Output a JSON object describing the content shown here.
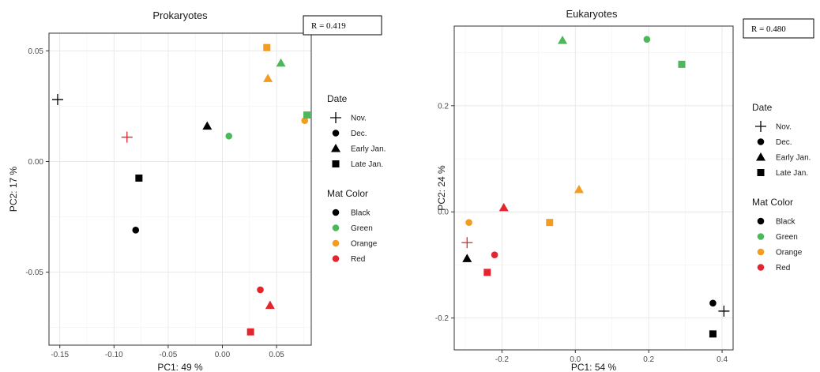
{
  "chart_data": [
    {
      "type": "scatter",
      "title": "Prokaryotes",
      "xlabel": "PC1:  49 %",
      "ylabel": "PC2:  17 %",
      "annotation": "R = 0.419",
      "xlim": [
        -0.16,
        0.082
      ],
      "ylim": [
        -0.083,
        0.058
      ],
      "xticks": [
        -0.15,
        -0.1,
        -0.05,
        0.0,
        0.05
      ],
      "xtick_labels": [
        "-0.15",
        "-0.10",
        "-0.05",
        "0.00",
        "0.05"
      ],
      "yticks": [
        -0.05,
        0.0,
        0.05
      ],
      "ytick_labels": [
        "-0.05",
        "0.00",
        "0.05"
      ],
      "grid": true,
      "points": [
        {
          "x": -0.152,
          "y": 0.028,
          "date": "Nov.",
          "color": "Black"
        },
        {
          "x": -0.088,
          "y": 0.011,
          "date": "Nov.",
          "color": "Red"
        },
        {
          "x": -0.08,
          "y": -0.031,
          "date": "Dec.",
          "color": "Black"
        },
        {
          "x": 0.006,
          "y": 0.0115,
          "date": "Dec.",
          "color": "Green"
        },
        {
          "x": 0.076,
          "y": 0.0185,
          "date": "Dec.",
          "color": "Orange"
        },
        {
          "x": 0.035,
          "y": -0.058,
          "date": "Dec.",
          "color": "Red"
        },
        {
          "x": -0.014,
          "y": 0.016,
          "date": "Early Jan.",
          "color": "Black"
        },
        {
          "x": 0.054,
          "y": 0.0445,
          "date": "Early Jan.",
          "color": "Green"
        },
        {
          "x": 0.042,
          "y": 0.0375,
          "date": "Early Jan.",
          "color": "Orange"
        },
        {
          "x": 0.044,
          "y": -0.065,
          "date": "Early Jan.",
          "color": "Red"
        },
        {
          "x": -0.077,
          "y": -0.0075,
          "date": "Late Jan.",
          "color": "Black"
        },
        {
          "x": 0.078,
          "y": 0.021,
          "date": "Late Jan.",
          "color": "Green"
        },
        {
          "x": 0.041,
          "y": 0.0515,
          "date": "Late Jan.",
          "color": "Orange"
        },
        {
          "x": 0.026,
          "y": -0.077,
          "date": "Late Jan.",
          "color": "Red"
        }
      ]
    },
    {
      "type": "scatter",
      "title": "Eukaryotes",
      "xlabel": "PC1:  54 %",
      "ylabel": "PC2:  24 %",
      "annotation": "R = 0.480",
      "xlim": [
        -0.33,
        0.43
      ],
      "ylim": [
        -0.26,
        0.35
      ],
      "xticks": [
        -0.2,
        0.0,
        0.2,
        0.4
      ],
      "xtick_labels": [
        "-0.2",
        "0.0",
        "0.2",
        "0.4"
      ],
      "yticks": [
        -0.2,
        0.0,
        0.2
      ],
      "ytick_labels": [
        "-0.2",
        "0.0",
        "0.2"
      ],
      "grid": true,
      "points": [
        {
          "x": -0.295,
          "y": -0.058,
          "date": "Nov.",
          "color": "Red"
        },
        {
          "x": 0.405,
          "y": -0.187,
          "date": "Nov.",
          "color": "Black"
        },
        {
          "x": -0.29,
          "y": -0.02,
          "date": "Dec.",
          "color": "Orange"
        },
        {
          "x": -0.22,
          "y": -0.081,
          "date": "Dec.",
          "color": "Red"
        },
        {
          "x": 0.195,
          "y": 0.325,
          "date": "Dec.",
          "color": "Green"
        },
        {
          "x": 0.375,
          "y": -0.172,
          "date": "Dec.",
          "color": "Black"
        },
        {
          "x": -0.295,
          "y": -0.088,
          "date": "Early Jan.",
          "color": "Black"
        },
        {
          "x": -0.195,
          "y": 0.008,
          "date": "Early Jan.",
          "color": "Red"
        },
        {
          "x": 0.01,
          "y": 0.042,
          "date": "Early Jan.",
          "color": "Orange"
        },
        {
          "x": -0.035,
          "y": 0.323,
          "date": "Early Jan.",
          "color": "Green"
        },
        {
          "x": -0.24,
          "y": -0.114,
          "date": "Late Jan.",
          "color": "Red"
        },
        {
          "x": -0.07,
          "y": -0.02,
          "date": "Late Jan.",
          "color": "Orange"
        },
        {
          "x": 0.29,
          "y": 0.278,
          "date": "Late Jan.",
          "color": "Green"
        },
        {
          "x": 0.375,
          "y": -0.23,
          "date": "Late Jan.",
          "color": "Black"
        }
      ]
    }
  ],
  "legend": {
    "date_title": "Date",
    "date_items": [
      {
        "label": "Nov.",
        "shape": "plus"
      },
      {
        "label": "Dec.",
        "shape": "circle"
      },
      {
        "label": "Early Jan.",
        "shape": "triangle"
      },
      {
        "label": "Late Jan.",
        "shape": "square"
      }
    ],
    "color_title": "Mat Color",
    "color_items": [
      {
        "label": "Black",
        "hex": "#000000"
      },
      {
        "label": "Green",
        "hex": "#4cb85a"
      },
      {
        "label": "Orange",
        "hex": "#f39c1f"
      },
      {
        "label": "Red",
        "hex": "#e3262d"
      }
    ]
  }
}
